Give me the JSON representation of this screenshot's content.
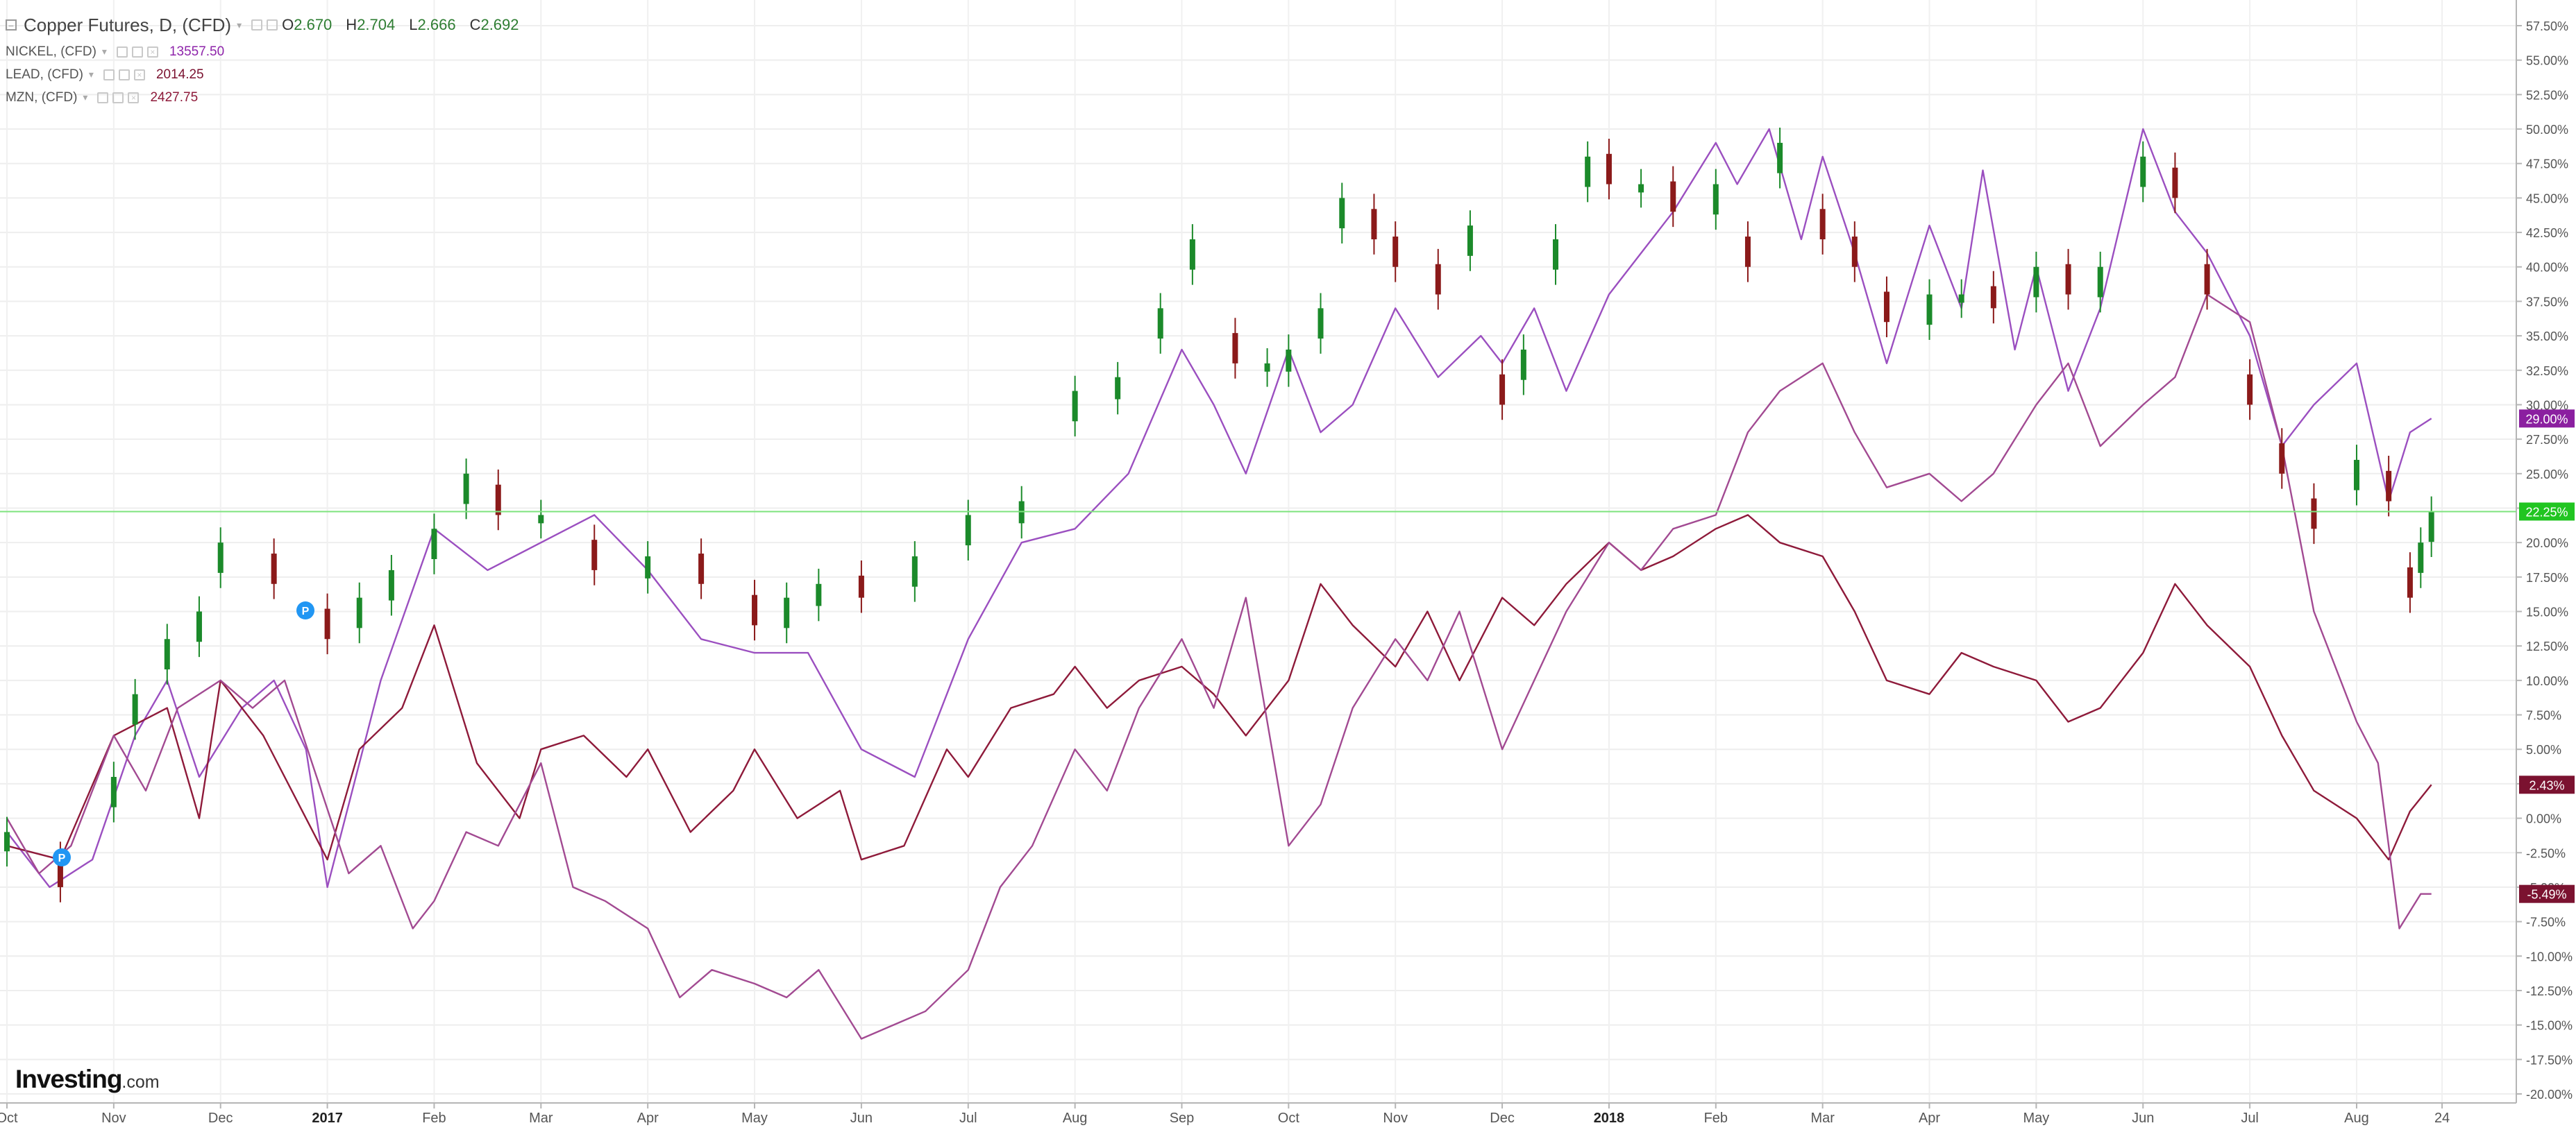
{
  "legend": {
    "main_title": "Copper Futures, D, (CFD)",
    "ohlc": [
      {
        "k": "O",
        "v": "2.670"
      },
      {
        "k": "H",
        "v": "2.704"
      },
      {
        "k": "L",
        "v": "2.666"
      },
      {
        "k": "C",
        "v": "2.692"
      }
    ],
    "series": [
      {
        "name": "NICKEL, (CFD)",
        "value": "13557.50",
        "color": "#8e24aa"
      },
      {
        "name": "LEAD, (CFD)",
        "value": "2014.25",
        "color": "#7b1230"
      },
      {
        "name": "MZN, (CFD)",
        "value": "2427.75",
        "color": "#8e1a3a"
      }
    ]
  },
  "branding": {
    "logo": "Investing",
    "suffix": ".com"
  },
  "markers": [
    "P",
    "P"
  ],
  "chart_data": {
    "type": "line",
    "subtype": "percent-comparison with candlestick main series",
    "y_unit": "%",
    "ylim": [
      -20,
      57.5
    ],
    "y_ticks": [
      "57.50%",
      "55.00%",
      "52.50%",
      "50.00%",
      "47.50%",
      "45.00%",
      "42.50%",
      "40.00%",
      "37.50%",
      "35.00%",
      "32.50%",
      "30.00%",
      "27.50%",
      "25.00%",
      "22.50%",
      "20.00%",
      "17.50%",
      "15.00%",
      "12.50%",
      "10.00%",
      "7.50%",
      "5.00%",
      "2.50%",
      "0.00%",
      "-2.50%",
      "-5.00%",
      "-7.50%",
      "-10.00%",
      "-12.50%",
      "-15.00%",
      "-17.50%",
      "-20.00%"
    ],
    "x_ticks": [
      "Oct",
      "Nov",
      "Dec",
      "2017",
      "Feb",
      "Mar",
      "Apr",
      "May",
      "Jun",
      "Jul",
      "Aug",
      "Sep",
      "Oct",
      "Nov",
      "Dec",
      "2018",
      "Feb",
      "Mar",
      "Apr",
      "May",
      "Jun",
      "Jul",
      "Aug",
      "24"
    ],
    "x_tick_pos": [
      0,
      1,
      2,
      3,
      4,
      5,
      6,
      7,
      8,
      9,
      10,
      11,
      12,
      13,
      14,
      15,
      16,
      17,
      18,
      19,
      20,
      21,
      22,
      22.8
    ],
    "x_range": [
      0,
      23.3
    ],
    "grid": true,
    "current_level": 22.25,
    "series": [
      {
        "name": "Copper Futures",
        "kind": "candlestick",
        "color": "#1b8a2a",
        "down_color": "#8b1a1a",
        "last_label": "22.25%",
        "label_color": "#21c521",
        "x": [
          0,
          0.5,
          1,
          1.2,
          1.5,
          1.8,
          2,
          2.5,
          3,
          3.3,
          3.6,
          4,
          4.3,
          4.6,
          5,
          5.5,
          6,
          6.5,
          7,
          7.3,
          7.6,
          8,
          8.5,
          9,
          9.5,
          10,
          10.4,
          10.8,
          11.1,
          11.5,
          11.8,
          12,
          12.3,
          12.5,
          12.8,
          13,
          13.4,
          13.7,
          14,
          14.2,
          14.5,
          14.8,
          15,
          15.3,
          15.6,
          16,
          16.3,
          16.6,
          17,
          17.3,
          17.6,
          18,
          18.3,
          18.6,
          19,
          19.3,
          19.6,
          20,
          20.3,
          20.6,
          21,
          21.3,
          21.6,
          22,
          22.3,
          22.5,
          22.6,
          22.7
        ],
        "y": [
          -1,
          -5,
          3,
          9,
          13,
          15,
          20,
          17,
          13,
          16,
          18,
          21,
          25,
          22,
          22,
          18,
          19,
          17,
          14,
          16,
          17,
          16,
          19,
          22,
          23,
          31,
          32,
          37,
          42,
          33,
          33,
          34,
          37,
          45,
          42,
          40,
          38,
          43,
          30,
          34,
          42,
          48,
          46,
          46,
          44,
          46,
          40,
          49,
          42,
          40,
          36,
          38,
          38,
          37,
          40,
          38,
          40,
          48,
          45,
          38,
          30,
          25,
          21,
          26,
          23,
          16,
          20,
          22.25
        ]
      },
      {
        "name": "",
        "kind": "line",
        "color": "#9b4fc0",
        "last_label": "29.00%",
        "label_color": "#8b1fa0",
        "x": [
          0,
          0.4,
          0.8,
          1.2,
          1.5,
          1.8,
          2.2,
          2.5,
          2.8,
          3,
          3.5,
          4,
          4.5,
          5,
          5.5,
          6,
          6.5,
          7,
          7.5,
          8,
          8.5,
          9,
          9.5,
          10,
          10.5,
          11,
          11.3,
          11.6,
          12,
          12.3,
          12.6,
          13,
          13.4,
          13.8,
          14,
          14.3,
          14.6,
          15,
          15.3,
          15.6,
          16,
          16.2,
          16.5,
          16.8,
          17,
          17.3,
          17.6,
          18,
          18.3,
          18.5,
          18.8,
          19,
          19.3,
          19.6,
          20,
          20.3,
          20.6,
          21,
          21.3,
          21.6,
          22,
          22.3,
          22.5,
          22.7
        ],
        "y": [
          -1,
          -5,
          -3,
          6,
          10,
          3,
          8,
          10,
          5,
          -5,
          10,
          21,
          18,
          20,
          22,
          18,
          13,
          12,
          12,
          5,
          3,
          13,
          20,
          21,
          25,
          34,
          30,
          25,
          34,
          28,
          30,
          37,
          32,
          35,
          33,
          37,
          31,
          38,
          41,
          44,
          49,
          46,
          50,
          42,
          48,
          41,
          33,
          43,
          37,
          47,
          34,
          40,
          31,
          37,
          50,
          44,
          41,
          35,
          27,
          30,
          33,
          23,
          28,
          29
        ]
      },
      {
        "name": "",
        "kind": "line",
        "color": "#8e1a3a",
        "last_label": "2.43%",
        "label_color": "#7b1230",
        "x": [
          0,
          0.5,
          1,
          1.5,
          1.8,
          2,
          2.4,
          2.8,
          3,
          3.3,
          3.7,
          4,
          4.4,
          4.8,
          5,
          5.4,
          5.8,
          6,
          6.4,
          6.8,
          7,
          7.4,
          7.8,
          8,
          8.4,
          8.8,
          9,
          9.4,
          9.8,
          10,
          10.3,
          10.6,
          11,
          11.3,
          11.6,
          12,
          12.3,
          12.6,
          13,
          13.3,
          13.6,
          14,
          14.3,
          14.6,
          15,
          15.3,
          15.6,
          16,
          16.3,
          16.6,
          17,
          17.3,
          17.6,
          18,
          18.3,
          18.6,
          19,
          19.3,
          19.6,
          20,
          20.3,
          20.6,
          21,
          21.3,
          21.6,
          22,
          22.3,
          22.5,
          22.7
        ],
        "y": [
          -2,
          -3,
          6,
          8,
          0,
          10,
          6,
          0,
          -3,
          5,
          8,
          14,
          4,
          0,
          5,
          6,
          3,
          5,
          -1,
          2,
          5,
          0,
          2,
          -3,
          -2,
          5,
          3,
          8,
          9,
          11,
          8,
          10,
          11,
          9,
          6,
          10,
          17,
          14,
          11,
          15,
          10,
          16,
          14,
          17,
          20,
          18,
          19,
          21,
          22,
          20,
          19,
          15,
          10,
          9,
          12,
          11,
          10,
          7,
          8,
          12,
          17,
          14,
          11,
          6,
          2,
          0,
          -3,
          0.5,
          2.43
        ]
      },
      {
        "name": "",
        "kind": "line",
        "color": "#a24a92",
        "last_label": "-5.49%",
        "label_color": "#7b1230",
        "x": [
          0,
          0.3,
          0.6,
          1,
          1.3,
          1.6,
          2,
          2.3,
          2.6,
          2.9,
          3.2,
          3.5,
          3.8,
          4,
          4.3,
          4.6,
          5,
          5.3,
          5.6,
          6,
          6.3,
          6.6,
          7,
          7.3,
          7.6,
          8,
          8.3,
          8.6,
          9,
          9.3,
          9.6,
          10,
          10.3,
          10.6,
          11,
          11.3,
          11.6,
          12,
          12.3,
          12.6,
          13,
          13.3,
          13.6,
          14,
          14.3,
          14.6,
          15,
          15.3,
          15.6,
          16,
          16.3,
          16.6,
          17,
          17.3,
          17.6,
          18,
          18.3,
          18.6,
          19,
          19.3,
          19.6,
          20,
          20.3,
          20.6,
          21,
          21.3,
          21.6,
          22,
          22.2,
          22.4,
          22.6,
          22.7
        ],
        "y": [
          0,
          -4,
          -2,
          6,
          2,
          8,
          10,
          8,
          10,
          3,
          -4,
          -2,
          -8,
          -6,
          -1,
          -2,
          4,
          -5,
          -6,
          -8,
          -13,
          -11,
          -12,
          -13,
          -11,
          -16,
          -15,
          -14,
          -11,
          -5,
          -2,
          5,
          2,
          8,
          13,
          8,
          16,
          -2,
          1,
          8,
          13,
          10,
          15,
          5,
          10,
          15,
          20,
          18,
          21,
          22,
          28,
          31,
          33,
          28,
          24,
          25,
          23,
          25,
          30,
          33,
          27,
          30,
          32,
          38,
          36,
          27,
          15,
          7,
          4,
          -8,
          -5.49,
          -5.49
        ]
      }
    ]
  }
}
